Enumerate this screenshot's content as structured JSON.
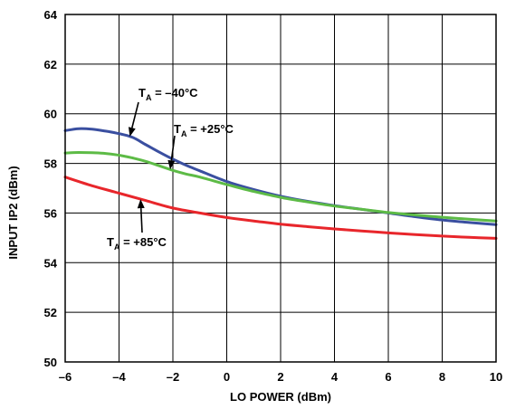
{
  "chart_data": {
    "type": "line",
    "xlabel": "LO POWER (dBm)",
    "ylabel": "INPUT IP2 (dBm)",
    "xlim": [
      -6,
      10
    ],
    "ylim": [
      50,
      64
    ],
    "x_ticks": [
      "–6",
      "–4",
      "–2",
      "0",
      "2",
      "4",
      "6",
      "8",
      "10"
    ],
    "y_ticks": [
      "50",
      "52",
      "54",
      "56",
      "58",
      "60",
      "62",
      "64"
    ],
    "grid": true,
    "series": [
      {
        "name": "T_A = –40°C",
        "color": "#3a4fa0",
        "x": [
          -6,
          -5.5,
          -5,
          -4.5,
          -4,
          -3.5,
          -3,
          -2.5,
          -2,
          -1.5,
          -1,
          0,
          1,
          2,
          3,
          4,
          5,
          6,
          7,
          8,
          9,
          10
        ],
        "y": [
          59.32,
          59.4,
          59.38,
          59.3,
          59.2,
          59.05,
          58.75,
          58.45,
          58.17,
          57.92,
          57.7,
          57.27,
          56.95,
          56.68,
          56.47,
          56.3,
          56.15,
          56.0,
          55.85,
          55.72,
          55.62,
          55.53
        ]
      },
      {
        "name": "T_A = +25°C",
        "color": "#5dbb46",
        "x": [
          -6,
          -5.5,
          -5,
          -4.5,
          -4,
          -3.5,
          -3,
          -2.5,
          -2,
          -1.5,
          -1,
          0,
          1,
          2,
          3,
          4,
          5,
          6,
          7,
          8,
          9,
          10
        ],
        "y": [
          58.42,
          58.44,
          58.43,
          58.4,
          58.33,
          58.22,
          58.08,
          57.9,
          57.72,
          57.57,
          57.45,
          57.15,
          56.87,
          56.63,
          56.45,
          56.28,
          56.15,
          56.02,
          55.92,
          55.83,
          55.75,
          55.68
        ]
      },
      {
        "name": "T_A = +85°C",
        "color": "#e8262b",
        "x": [
          -6,
          -5,
          -4,
          -3,
          -2,
          -1,
          0,
          1,
          2,
          3,
          4,
          5,
          6,
          7,
          8,
          9,
          10
        ],
        "y": [
          57.45,
          57.1,
          56.8,
          56.5,
          56.2,
          56.0,
          55.82,
          55.68,
          55.55,
          55.45,
          55.36,
          55.28,
          55.2,
          55.13,
          55.07,
          55.02,
          54.98
        ]
      }
    ],
    "annotations": [
      {
        "main": "T",
        "sub": "A",
        "rest": " = –40°C",
        "series": 0,
        "anchor_x": -3.6
      },
      {
        "main": "T",
        "sub": "A",
        "rest": " = +25°C",
        "series": 1,
        "anchor_x": -2.1
      },
      {
        "main": "T",
        "sub": "A",
        "rest": " = +85°C",
        "series": 2,
        "anchor_x": -3.2
      }
    ]
  }
}
